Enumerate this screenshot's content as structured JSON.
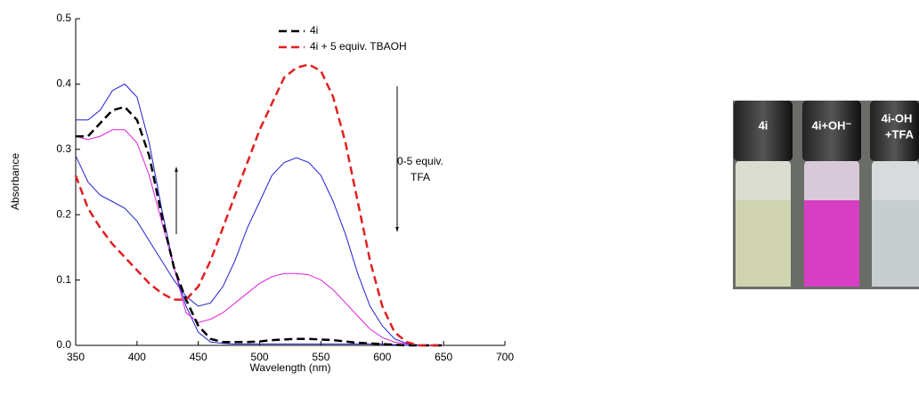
{
  "chart_data": {
    "type": "line",
    "xlabel": "Wavelength (nm)",
    "ylabel": "Absorbance",
    "x": [
      350,
      360,
      370,
      380,
      390,
      400,
      410,
      420,
      430,
      440,
      450,
      460,
      470,
      480,
      490,
      500,
      510,
      520,
      530,
      540,
      550,
      560,
      570,
      580,
      590,
      600,
      610,
      620,
      630,
      640,
      650
    ],
    "series": [
      {
        "color": "#1f1fd0",
        "dashed": false,
        "values": [
          0.345,
          0.345,
          0.36,
          0.39,
          0.4,
          0.38,
          0.31,
          0.21,
          0.12,
          0.06,
          0.02,
          0.005,
          0.003,
          0.002,
          0.002,
          0.002,
          0.002,
          0.002,
          0.002,
          0.002,
          0.002,
          0.002,
          0.002,
          0.002,
          0.002,
          0.002,
          0.001,
          0,
          0,
          0,
          0
        ]
      },
      {
        "color": "#e020e0",
        "dashed": false,
        "values": [
          0.32,
          0.315,
          0.32,
          0.33,
          0.33,
          0.31,
          0.26,
          0.19,
          0.12,
          0.05,
          0.035,
          0.04,
          0.05,
          0.065,
          0.08,
          0.095,
          0.105,
          0.11,
          0.11,
          0.108,
          0.1,
          0.085,
          0.065,
          0.045,
          0.025,
          0.012,
          0.005,
          0.002,
          0,
          0,
          0
        ]
      },
      {
        "color": "#1f1fd0",
        "dashed": false,
        "values": [
          0.29,
          0.25,
          0.23,
          0.22,
          0.21,
          0.19,
          0.16,
          0.13,
          0.1,
          0.075,
          0.06,
          0.065,
          0.09,
          0.13,
          0.18,
          0.22,
          0.26,
          0.28,
          0.287,
          0.28,
          0.26,
          0.22,
          0.17,
          0.11,
          0.06,
          0.03,
          0.01,
          0.003,
          0,
          0,
          0
        ]
      },
      {
        "name": "4i",
        "color": "#000000",
        "dashed": true,
        "values": [
          0.32,
          0.32,
          0.34,
          0.36,
          0.365,
          0.345,
          0.29,
          0.2,
          0.12,
          0.07,
          0.03,
          0.01,
          0.005,
          0.005,
          0.005,
          0.006,
          0.008,
          0.009,
          0.01,
          0.01,
          0.009,
          0.008,
          0.006,
          0.004,
          0.003,
          0.002,
          0.001,
          0,
          0,
          0,
          0
        ]
      },
      {
        "name": "4i + 5 equiv. TBAOH",
        "color": "#e02020",
        "dashed": true,
        "values": [
          0.26,
          0.21,
          0.18,
          0.155,
          0.135,
          0.115,
          0.095,
          0.08,
          0.07,
          0.07,
          0.09,
          0.13,
          0.18,
          0.23,
          0.28,
          0.33,
          0.37,
          0.41,
          0.425,
          0.43,
          0.42,
          0.38,
          0.31,
          0.22,
          0.13,
          0.06,
          0.02,
          0.005,
          0,
          0,
          0
        ]
      }
    ],
    "xlim": [
      350,
      700
    ],
    "xticks": [
      350,
      400,
      450,
      500,
      550,
      600,
      650,
      700
    ],
    "ylim": [
      0,
      0.5
    ],
    "yticks": [
      {
        "value": 0,
        "label": "0.0"
      },
      0.1,
      0.2,
      0.3,
      0.4,
      0.5
    ],
    "annotations": [
      "0-5 equiv.",
      "TFA"
    ]
  },
  "photo": {
    "labels": [
      "4i",
      "4i+OH⁻",
      "4i-OH",
      "+TFA"
    ]
  }
}
